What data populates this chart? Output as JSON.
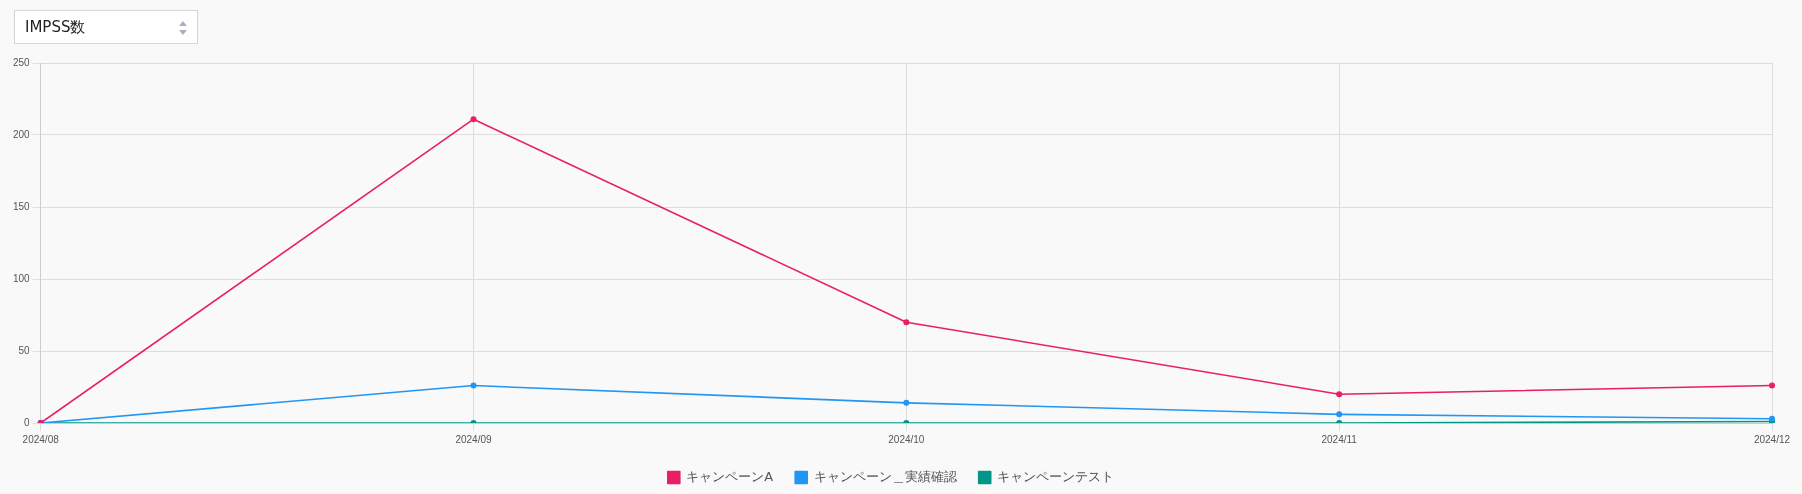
{
  "chart_data": {
    "type": "line",
    "title": "IMPSS数",
    "categories": [
      "2024/08",
      "2024/09",
      "2024/10",
      "2024/11",
      "2024/12"
    ],
    "series": [
      {
        "name": "キャンペーンA",
        "color": "#e91e63",
        "values": [
          0,
          211,
          70,
          20,
          26
        ]
      },
      {
        "name": "キャンペーン＿実績確認",
        "color": "#2196f3",
        "values": [
          0,
          26,
          14,
          6,
          3
        ]
      },
      {
        "name": "キャンペーンテスト",
        "color": "#009688",
        "values": [
          0,
          0,
          0,
          0,
          1
        ]
      }
    ],
    "ylim": [
      0,
      250
    ],
    "yticks": [
      0,
      50,
      100,
      150,
      200,
      250
    ],
    "grid": true,
    "legend": "bottom",
    "marker": "circle",
    "line_style": "solid"
  }
}
